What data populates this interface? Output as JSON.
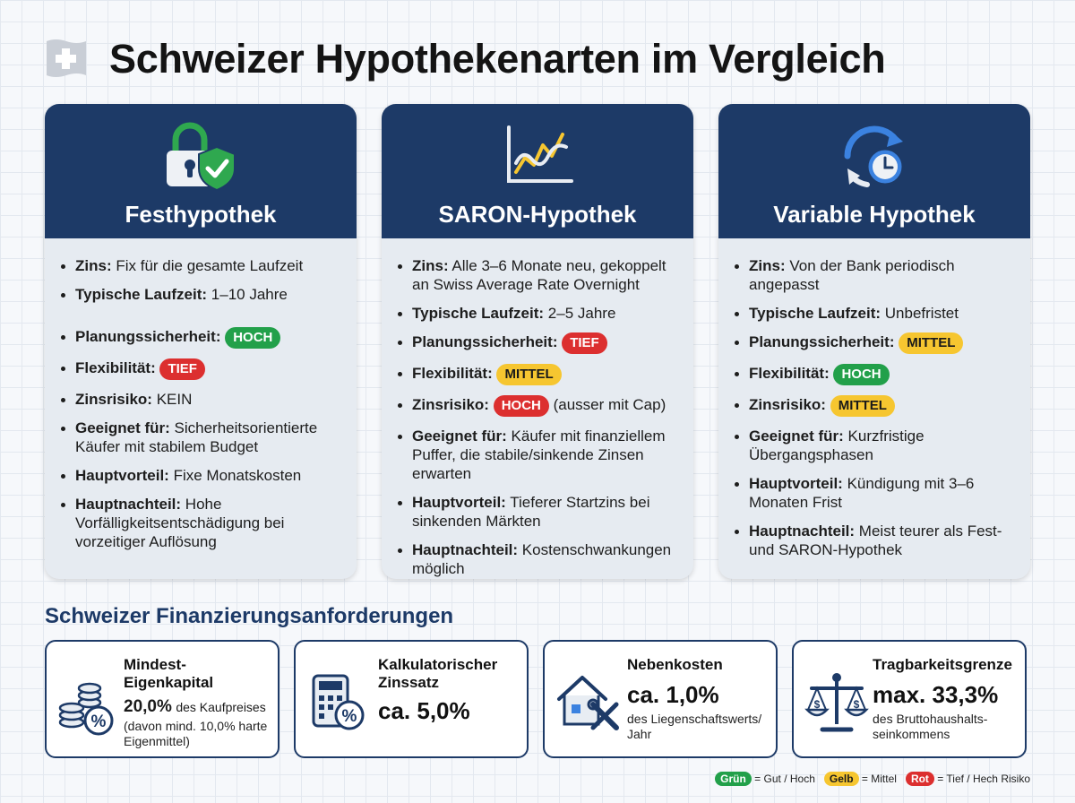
{
  "title": "Schweizer Hypothekenarten im Vergleich",
  "colors": {
    "navy": "#1d3a67",
    "green": "#22a04a",
    "yellow": "#f6c630",
    "red": "#dc2f2f"
  },
  "cards": [
    {
      "title": "Festhypothek",
      "icon": "lock-shield-icon",
      "zins_label": "Zins:",
      "zins": "Fix für die gesamte Laufzeit",
      "laufzeit_label": "Typische Laufzeit:",
      "laufzeit": "1–10 Jahre",
      "planung_label": "Planungssicherheit:",
      "planung": "HOCH",
      "flex_label": "Flexibilität:",
      "flex": "TIEF",
      "risiko_label": "Zinsrisiko:",
      "risiko": "KEIN",
      "risiko_note": "",
      "geeignet_label": "Geeignet für:",
      "geeignet": "Sicherheitsorientierte Käufer mit stabilem Budget",
      "vorteil_label": "Hauptvorteil:",
      "vorteil": "Fixe Monatskosten",
      "nachteil_label": "Hauptnachteil:",
      "nachteil": "Hohe Vorfälligkeitsentschädigung bei vorzeitiger Auflösung"
    },
    {
      "title": "SARON-Hypothek",
      "icon": "line-chart-icon",
      "zins_label": "Zins:",
      "zins": "Alle 3–6 Monate neu, gekoppelt an Swiss Average Rate Overnight",
      "laufzeit_label": "Typische Laufzeit:",
      "laufzeit": "2–5 Jahre",
      "planung_label": "Planungssicherheit:",
      "planung": "TIEF",
      "flex_label": "Flexibilität:",
      "flex": "MITTEL",
      "risiko_label": "Zinsrisiko:",
      "risiko": "HOCH",
      "risiko_note": "(ausser mit Cap)",
      "geeignet_label": "Geeignet für:",
      "geeignet": "Käufer mit finanziellem Puffer, die stabile/sinkende Zinsen erwarten",
      "vorteil_label": "Hauptvorteil:",
      "vorteil": "Tieferer Startzins bei sinkenden Märkten",
      "nachteil_label": "Hauptnachteil:",
      "nachteil": "Kostenschwankungen möglich"
    },
    {
      "title": "Variable Hypothek",
      "icon": "clock-refresh-icon",
      "zins_label": "Zins:",
      "zins": "Von der Bank periodisch angepasst",
      "laufzeit_label": "Typische Laufzeit:",
      "laufzeit": "Unbefristet",
      "planung_label": "Planungssicherheit:",
      "planung": "MITTEL",
      "flex_label": "Flexibilität:",
      "flex": "HOCH",
      "risiko_label": "Zinsrisiko:",
      "risiko": "MITTEL",
      "risiko_note": "",
      "geeignet_label": "Geeignet für:",
      "geeignet": "Kurzfristige Übergangsphasen",
      "vorteil_label": "Hauptvorteil:",
      "vorteil": "Kündigung mit 3–6 Monaten Frist",
      "nachteil_label": "Hauptnachteil:",
      "nachteil": "Meist teurer als Fest- und SARON-Hypothek"
    }
  ],
  "finanzierung": {
    "title": "Schweizer Finanzierungsanforderungen",
    "items": [
      {
        "title": "Mindest-Eigenkapital",
        "value": "20,0%",
        "value_suffix": "des Kaufpreises",
        "note": "(davon mind. 10,0% harte Eigenmittel)",
        "icon": "coins-percent-icon"
      },
      {
        "title": "Kalkulatorischer Zinssatz",
        "value": "ca. 5,0%",
        "note": "",
        "icon": "calculator-percent-icon"
      },
      {
        "title": "Nebenkosten",
        "value": "ca. 1,0%",
        "note": "des Liegenschaftswerts/ Jahr",
        "icon": "house-tools-icon"
      },
      {
        "title": "Tragbarkeitsgrenze",
        "value": "max. 33,3%",
        "note": "des Bruttohaushalts- seinkommens",
        "icon": "balance-scale-icon"
      }
    ]
  },
  "legend": {
    "green_label": "Grün",
    "green_text": "= Gut / Hoch",
    "yellow_label": "Gelb",
    "yellow_text": "= Mittel",
    "red_label": "Rot",
    "red_text": "= Tief / Hech Risiko"
  }
}
